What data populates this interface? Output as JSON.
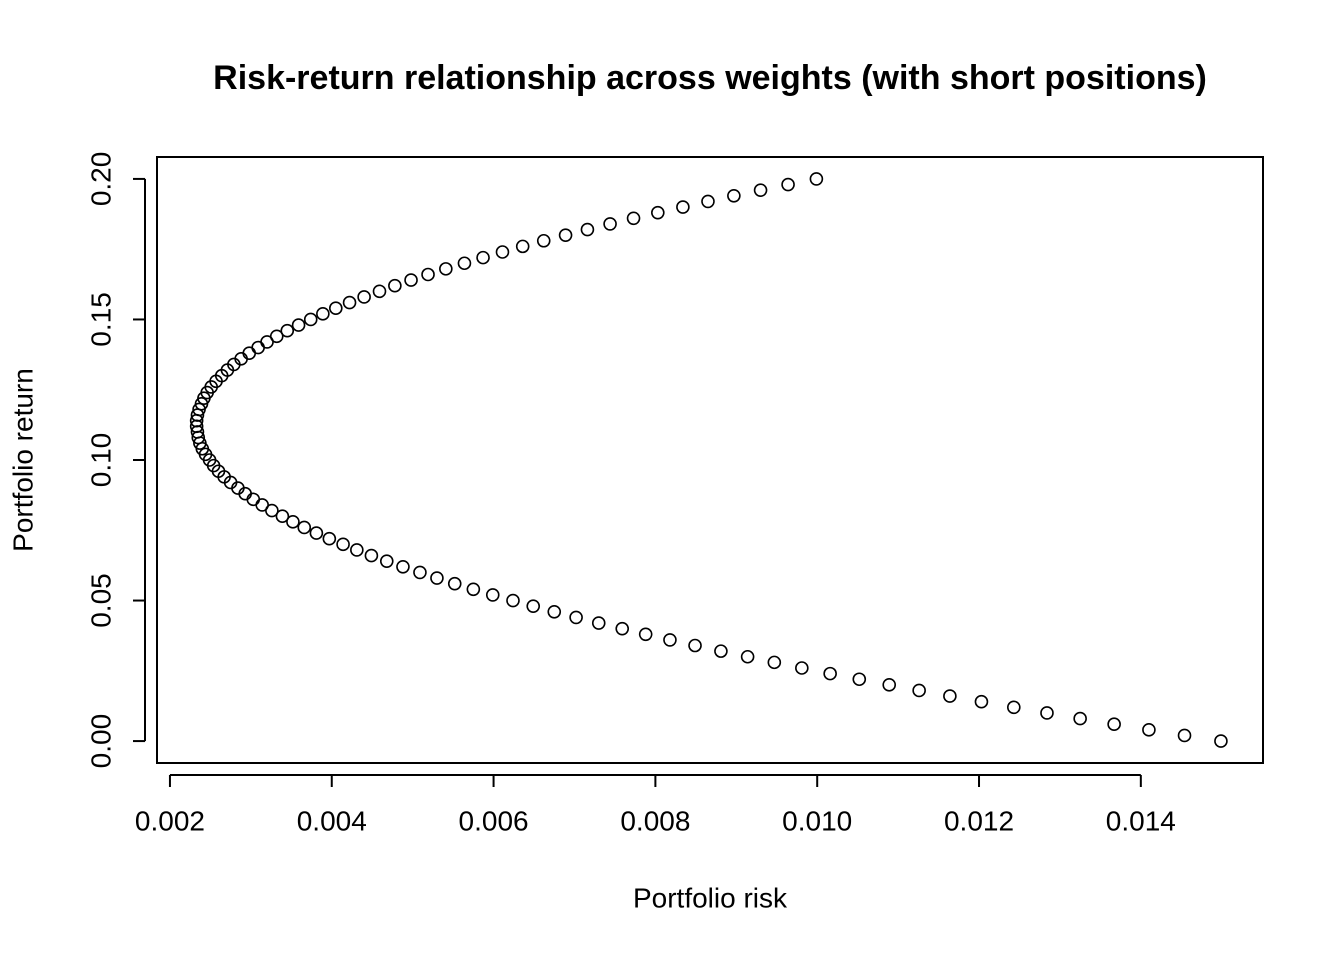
{
  "chart_data": {
    "type": "scatter",
    "title": "Risk-return relationship across weights (with short positions)",
    "x_label": "Portfolio risk",
    "y_label": "Portfolio return",
    "color": "#000000",
    "xlim": [
      0.00184,
      0.01551
    ],
    "ylim": [
      -0.0078,
      0.2078
    ],
    "xticks": [
      {
        "value": 0.002,
        "label": "0.002"
      },
      {
        "value": 0.004,
        "label": "0.004"
      },
      {
        "value": 0.006,
        "label": "0.006"
      },
      {
        "value": 0.008,
        "label": "0.008"
      },
      {
        "value": 0.01,
        "label": "0.010"
      },
      {
        "value": 0.012,
        "label": "0.012"
      },
      {
        "value": 0.014,
        "label": "0.014"
      }
    ],
    "yticks": [
      {
        "value": 0,
        "label": "0.00"
      },
      0.05,
      {
        "value": 0.1,
        "label": "0.10"
      },
      0.15,
      {
        "value": 0.2,
        "label": "0.20"
      }
    ],
    "x": [
      0.01499,
      0.01454,
      0.0141,
      0.01367,
      0.01325,
      0.01284,
      0.01243,
      0.01203,
      0.01164,
      0.01126,
      0.01089,
      0.01052,
      0.01016,
      0.00981,
      0.00947,
      0.00914,
      0.00881,
      0.00849,
      0.00818,
      0.00788,
      0.00759,
      0.0073,
      0.00702,
      0.00675,
      0.00649,
      0.00624,
      0.00599,
      0.00575,
      0.00552,
      0.0053,
      0.00509,
      0.00488,
      0.00468,
      0.00449,
      0.00431,
      0.00414,
      0.00397,
      0.00381,
      0.00366,
      0.00352,
      0.00339,
      0.00326,
      0.00314,
      0.00303,
      0.00293,
      0.00284,
      0.00275,
      0.00267,
      0.0026,
      0.00254,
      0.00249,
      0.00244,
      0.0024,
      0.00237,
      0.00235,
      0.00234,
      0.00233,
      0.00233,
      0.00234,
      0.00236,
      0.00239,
      0.00242,
      0.00246,
      0.00251,
      0.00257,
      0.00264,
      0.00271,
      0.00279,
      0.00288,
      0.00298,
      0.00309,
      0.0032,
      0.00332,
      0.00345,
      0.00359,
      0.00374,
      0.00389,
      0.00405,
      0.00422,
      0.0044,
      0.00459,
      0.00478,
      0.00498,
      0.00519,
      0.00541,
      0.00564,
      0.00587,
      0.00611,
      0.00636,
      0.00662,
      0.00689,
      0.00716,
      0.00744,
      0.00773,
      0.00803,
      0.00834,
      0.00865,
      0.00897,
      0.0093,
      0.00964,
      0.00999
    ],
    "values": [
      0,
      0.002,
      0.004,
      0.006,
      0.008,
      0.01,
      0.012,
      0.014,
      0.016,
      0.018,
      0.02,
      0.022,
      0.024,
      0.026,
      0.028,
      0.03,
      0.032,
      0.034,
      0.036,
      0.038,
      0.04,
      0.042,
      0.044,
      0.046,
      0.048,
      0.05,
      0.052,
      0.054,
      0.056,
      0.058,
      0.06,
      0.062,
      0.064,
      0.066,
      0.068,
      0.07,
      0.072,
      0.074,
      0.076,
      0.078,
      0.08,
      0.082,
      0.084,
      0.086,
      0.088,
      0.09,
      0.092,
      0.094,
      0.096,
      0.098,
      0.1,
      0.102,
      0.104,
      0.106,
      0.108,
      0.11,
      0.112,
      0.114,
      0.116,
      0.118,
      0.12,
      0.122,
      0.124,
      0.126,
      0.128,
      0.13,
      0.132,
      0.134,
      0.136,
      0.138,
      0.14,
      0.142,
      0.144,
      0.146,
      0.148,
      0.15,
      0.152,
      0.154,
      0.156,
      0.158,
      0.16,
      0.162,
      0.164,
      0.166,
      0.168,
      0.17,
      0.172,
      0.174,
      0.176,
      0.178,
      0.18,
      0.182,
      0.184,
      0.186,
      0.188,
      0.19,
      0.192,
      0.194,
      0.196,
      0.198,
      0.2
    ]
  }
}
